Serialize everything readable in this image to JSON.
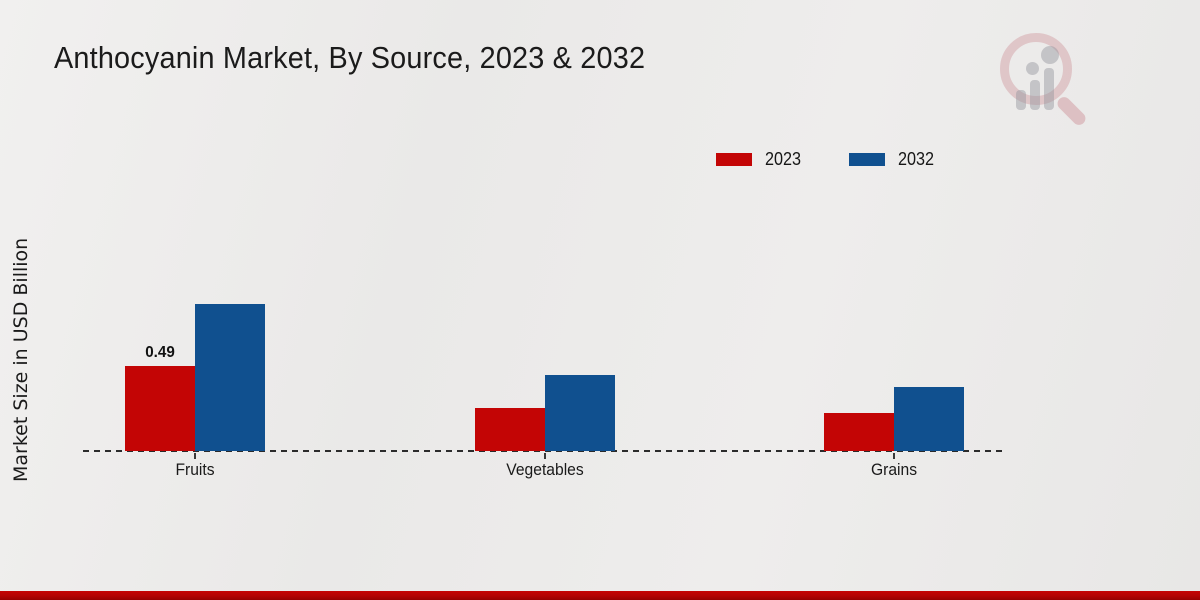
{
  "title": "Anthocyanin Market, By Source, 2023 & 2032",
  "y_axis_label": "Market Size in USD Billion",
  "legend": [
    {
      "label": "2023",
      "color": "#c30505"
    },
    {
      "label": "2032",
      "color": "#10508f"
    }
  ],
  "colors": {
    "series_2023": "#c30505",
    "series_2032": "#10508f",
    "footer_band": "#b30303",
    "baseline": "#2b2b2b"
  },
  "watermark": {
    "name": "market-research-future-logo"
  },
  "chart_data": {
    "type": "bar",
    "categories": [
      "Fruits",
      "Vegetables",
      "Grains"
    ],
    "series": [
      {
        "name": "2023",
        "color": "#c30505",
        "values": [
          0.49,
          0.25,
          0.22
        ]
      },
      {
        "name": "2032",
        "color": "#10508f",
        "values": [
          0.85,
          0.44,
          0.37
        ]
      }
    ],
    "annotations": [
      {
        "category": "Fruits",
        "series": "2023",
        "text": "0.49"
      }
    ],
    "title": "Anthocyanin Market, By Source, 2023 & 2032",
    "xlabel": "",
    "ylabel": "Market Size in USD Billion",
    "ylim": [
      0,
      1.0
    ],
    "grid": false,
    "legend_position": "top-right",
    "baseline_style": "dashed"
  }
}
